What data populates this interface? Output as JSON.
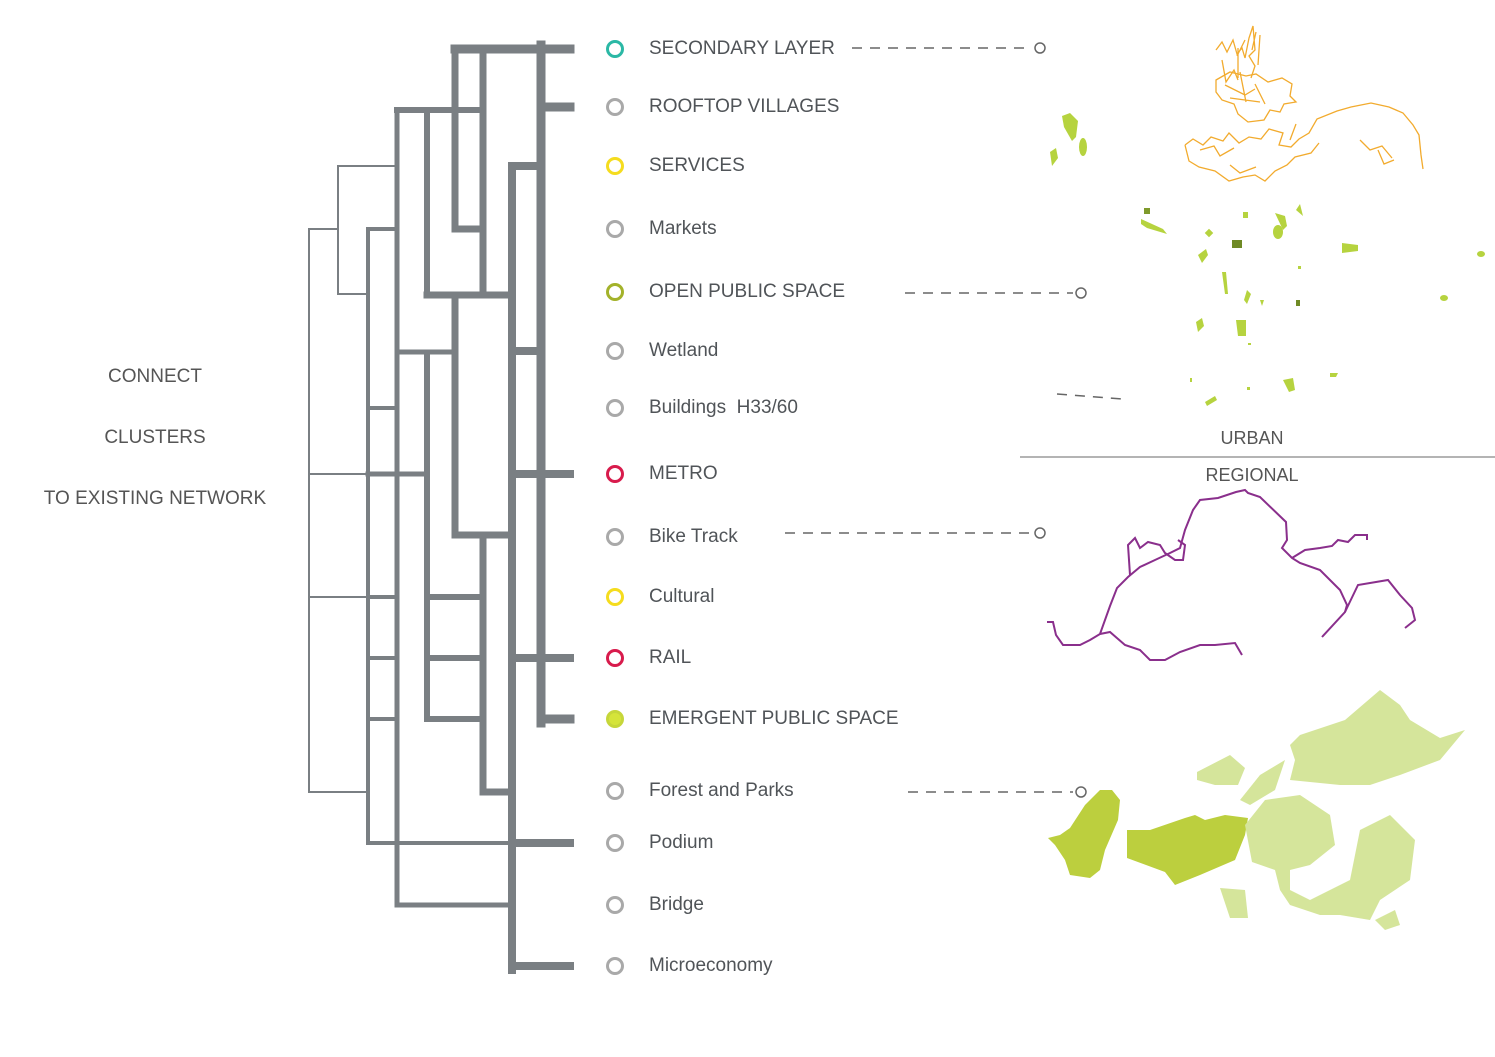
{
  "side_text": {
    "line1": "CONNECT",
    "line2": "CLUSTERS",
    "line3": "TO EXISTING NETWORK"
  },
  "scale": {
    "urban": "URBAN",
    "regional": "REGIONAL"
  },
  "colors": {
    "tree": "#7a7f83",
    "bike_track": "#8a2f8c",
    "services_map": "#f2ab2e",
    "open_space_map": "#b6d33f",
    "forest_light": "#d5e59b",
    "forest_dark": "#bccf3e"
  },
  "items": [
    {
      "label": "SECONDARY LAYER",
      "color": "#2bb8a5",
      "filled": false
    },
    {
      "label": "ROOFTOP VILLAGES",
      "color": "#a9a9a9",
      "filled": false
    },
    {
      "label": "SERVICES",
      "color": "#f5dc1e",
      "filled": false
    },
    {
      "label": "Markets",
      "color": "#a9a9a9",
      "filled": false
    },
    {
      "label": "OPEN PUBLIC SPACE",
      "color": "#a3b22a",
      "filled": false
    },
    {
      "label": "Wetland",
      "color": "#a9a9a9",
      "filled": false
    },
    {
      "label": "Buildings  H33/60",
      "color": "#a9a9a9",
      "filled": false
    },
    {
      "label": "METRO",
      "color": "#d81b4c",
      "filled": false
    },
    {
      "label": "Bike Track",
      "color": "#a9a9a9",
      "filled": false
    },
    {
      "label": "Cultural",
      "color": "#f5dc1e",
      "filled": false
    },
    {
      "label": "RAIL",
      "color": "#d81b4c",
      "filled": false
    },
    {
      "label": "EMERGENT PUBLIC SPACE",
      "color": "#d5e43a",
      "filled": true
    },
    {
      "label": "Forest and Parks",
      "color": "#a9a9a9",
      "filled": false
    },
    {
      "label": "Podium",
      "color": "#a9a9a9",
      "filled": false
    },
    {
      "label": "Bridge",
      "color": "#a9a9a9",
      "filled": false
    },
    {
      "label": "Microeconomy",
      "color": "#a9a9a9",
      "filled": false
    }
  ]
}
